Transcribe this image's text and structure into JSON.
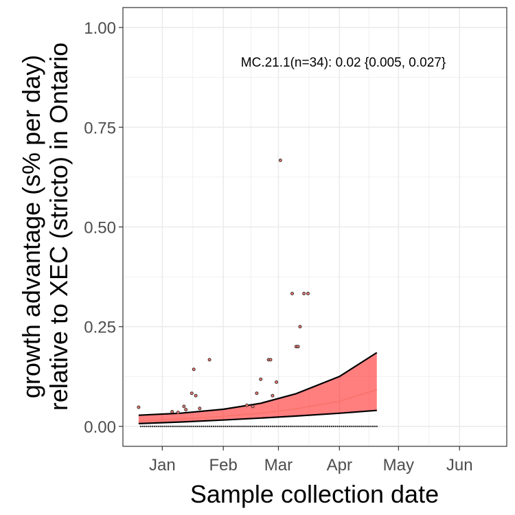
{
  "chart_data": {
    "type": "scatter",
    "title": "",
    "xlabel": "Sample collection date",
    "ylabel_lines": [
      "growth advantage (s% per day)",
      "relative to XEC (stricto) in Ontario"
    ],
    "annotation": "MC.21.1(n=34): 0.02 {0.005, 0.027}",
    "x_range": [
      "2024-12-12",
      "2025-06-25"
    ],
    "ylim": [
      -0.05,
      1.05
    ],
    "x_ticks": [
      {
        "date": "2025-01-01",
        "label": "Jan"
      },
      {
        "date": "2025-02-01",
        "label": "Feb"
      },
      {
        "date": "2025-03-01",
        "label": "Mar"
      },
      {
        "date": "2025-04-01",
        "label": "Apr"
      },
      {
        "date": "2025-05-01",
        "label": "May"
      },
      {
        "date": "2025-06-01",
        "label": "Jun"
      }
    ],
    "y_ticks": [
      {
        "value": 0.0,
        "label": "0.00"
      },
      {
        "value": 0.25,
        "label": "0.25"
      },
      {
        "value": 0.5,
        "label": "0.50"
      },
      {
        "value": 0.75,
        "label": "0.75"
      },
      {
        "value": 1.0,
        "label": "1.00"
      }
    ],
    "grid": true,
    "colors": {
      "fit_line": "#f8766d",
      "ribbon": "#ff0000",
      "ribbon_edge": "#000000",
      "point_fill": "#f8766d",
      "point_edge": "#333333"
    },
    "fit": {
      "x": [
        "2024-12-20",
        "2025-01-10",
        "2025-02-01",
        "2025-02-20",
        "2025-03-10",
        "2025-04-01",
        "2025-04-20"
      ],
      "y": [
        0.013,
        0.018,
        0.025,
        0.033,
        0.044,
        0.063,
        0.092
      ],
      "lower": [
        0.007,
        0.011,
        0.016,
        0.021,
        0.026,
        0.033,
        0.04
      ],
      "upper": [
        0.028,
        0.033,
        0.043,
        0.058,
        0.082,
        0.125,
        0.185
      ]
    },
    "points": [
      {
        "x": "2024-12-20",
        "y": 0.048
      },
      {
        "x": "2025-01-06",
        "y": 0.037
      },
      {
        "x": "2025-01-09",
        "y": 0.035
      },
      {
        "x": "2025-01-12",
        "y": 0.05
      },
      {
        "x": "2025-01-13",
        "y": 0.042
      },
      {
        "x": "2025-01-16",
        "y": 0.083
      },
      {
        "x": "2025-01-17",
        "y": 0.143
      },
      {
        "x": "2025-01-18",
        "y": 0.077
      },
      {
        "x": "2025-01-20",
        "y": 0.045
      },
      {
        "x": "2025-01-25",
        "y": 0.167
      },
      {
        "x": "2025-02-13",
        "y": 0.053
      },
      {
        "x": "2025-02-16",
        "y": 0.05
      },
      {
        "x": "2025-02-18",
        "y": 0.083
      },
      {
        "x": "2025-02-20",
        "y": 0.118
      },
      {
        "x": "2025-02-24",
        "y": 0.167
      },
      {
        "x": "2025-02-25",
        "y": 0.167
      },
      {
        "x": "2025-02-26",
        "y": 0.077
      },
      {
        "x": "2025-02-28",
        "y": 0.111
      },
      {
        "x": "2025-03-02",
        "y": 0.667
      },
      {
        "x": "2025-03-08",
        "y": 0.333
      },
      {
        "x": "2025-03-10",
        "y": 0.2
      },
      {
        "x": "2025-03-11",
        "y": 0.2
      },
      {
        "x": "2025-03-12",
        "y": 0.25
      },
      {
        "x": "2025-03-14",
        "y": 0.333
      },
      {
        "x": "2025-03-16",
        "y": 0.333
      }
    ],
    "zero_points": {
      "x_start": "2024-12-21",
      "x_end": "2025-04-20",
      "step_days": 1,
      "y": 0
    }
  }
}
